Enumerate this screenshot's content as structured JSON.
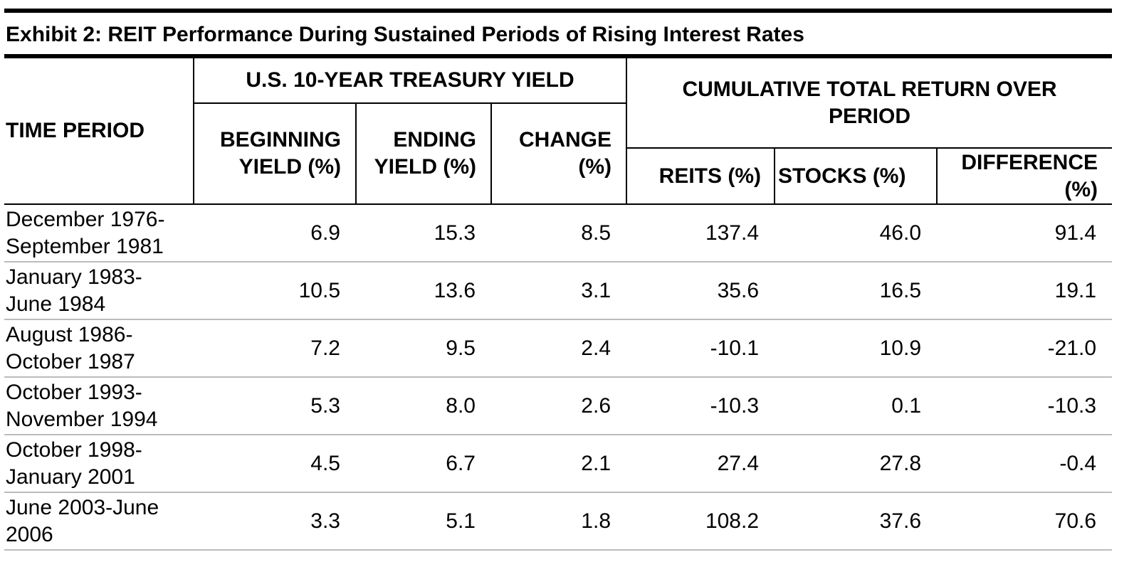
{
  "title": "Exhibit 2: REIT Performance During Sustained Periods of Rising Interest Rates",
  "header": {
    "time_period": "TIME PERIOD",
    "yield_group": "U.S. 10-YEAR TREASURY YIELD",
    "return_group": "CUMULATIVE TOTAL RETURN OVER PERIOD",
    "columns": [
      "BEGINNING YIELD (%)",
      "ENDING YIELD (%)",
      "CHANGE (%)",
      "REITS (%)",
      "STOCKS (%)",
      "DIFFERENCE (%)"
    ]
  },
  "table": {
    "rows": [
      [
        "December 1976-September 1981",
        "6.9",
        "15.3",
        "8.5",
        "137.4",
        "46.0",
        "91.4"
      ],
      [
        "January 1983-June 1984",
        "10.5",
        "13.6",
        "3.1",
        "35.6",
        "16.5",
        "19.1"
      ],
      [
        "August 1986-October 1987",
        "7.2",
        "9.5",
        "2.4",
        "-10.1",
        "10.9",
        "-21.0"
      ],
      [
        "October 1993-November 1994",
        "5.3",
        "8.0",
        "2.6",
        "-10.3",
        "0.1",
        "-10.3"
      ],
      [
        "October 1998-January 2001",
        "4.5",
        "6.7",
        "2.1",
        "27.4",
        "27.8",
        "-0.4"
      ],
      [
        "June 2003-June 2006",
        "3.3",
        "5.1",
        "1.8",
        "108.2",
        "37.6",
        "70.6"
      ]
    ]
  }
}
